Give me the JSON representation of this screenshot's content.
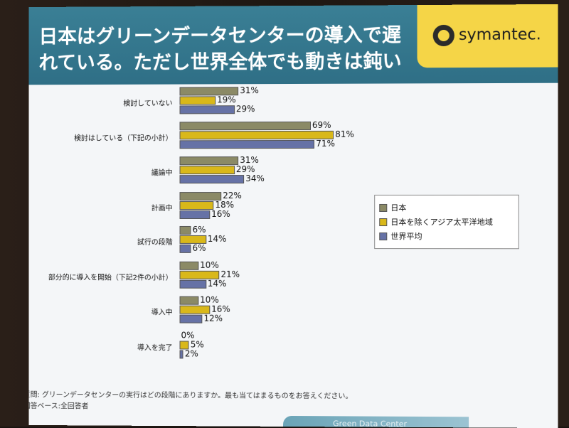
{
  "slide": {
    "title": "日本はグリーンデータセンターの導入で遅\nれている。ただし世界全体でも動きは鈍い",
    "logo_text": "symantec.",
    "footnote_question": "質問: グリーンデータセンターの実行はどの段階にありますか。最も当てはまるものをお答えください。",
    "footnote_base": "回答ベース:全回答者",
    "bottom_band_text": "Green Data Center"
  },
  "colors": {
    "japan": "#8b8a66",
    "asia": "#d9b81a",
    "world": "#6672a6",
    "title_band": "#2f6f86",
    "logo_bg": "#f5d547"
  },
  "chart_data": {
    "type": "bar",
    "orientation": "horizontal",
    "categories": [
      "検討していない",
      "検討はしている（下記の小計）",
      "議論中",
      "計画中",
      "試行の段階",
      "部分的に導入を開始（下記2件の小計）",
      "導入中",
      "導入を完了"
    ],
    "series": [
      {
        "name": "日本",
        "values": [
          31,
          69,
          31,
          22,
          6,
          10,
          10,
          0
        ],
        "labels": [
          "31%",
          "69%",
          "31%",
          "22%",
          "6%",
          "10%",
          "10%",
          "0%"
        ]
      },
      {
        "name": "日本を除くアジア太平洋地域",
        "values": [
          19,
          81,
          29,
          18,
          14,
          21,
          16,
          5
        ],
        "labels": [
          "19%",
          "81%",
          "29%",
          "18%",
          "14%",
          "21%",
          "16%",
          "5%"
        ]
      },
      {
        "name": "世界平均",
        "values": [
          29,
          71,
          34,
          16,
          6,
          14,
          12,
          2
        ],
        "labels": [
          "29%",
          "71%",
          "34%",
          "16%",
          "6%",
          "14%",
          "12%",
          "2%"
        ]
      }
    ],
    "legend_position": "right",
    "grid": false
  }
}
